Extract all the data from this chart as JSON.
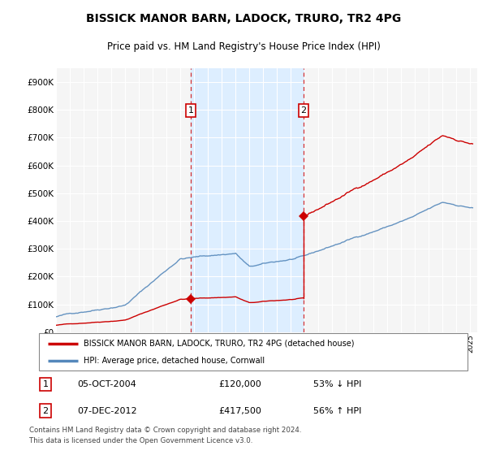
{
  "title": "BISSICK MANOR BARN, LADOCK, TRURO, TR2 4PG",
  "subtitle": "Price paid vs. HM Land Registry's House Price Index (HPI)",
  "sale1_date": "05-OCT-2004",
  "sale1_price": 120000,
  "sale1_label": "53% ↓ HPI",
  "sale2_date": "07-DEC-2012",
  "sale2_price": 417500,
  "sale2_label": "56% ↑ HPI",
  "legend_line1": "BISSICK MANOR BARN, LADOCK, TRURO, TR2 4PG (detached house)",
  "legend_line2": "HPI: Average price, detached house, Cornwall",
  "footer": "Contains HM Land Registry data © Crown copyright and database right 2024.\nThis data is licensed under the Open Government Licence v3.0.",
  "sale_line_color": "#cc0000",
  "hpi_line_color": "#5588bb",
  "sale_marker_color": "#cc0000",
  "background_color": "#ffffff",
  "plot_bg_color": "#f5f5f5",
  "highlight_color": "#ddeeff",
  "sale1_x_year": 2004.76,
  "sale2_x_year": 2012.93,
  "ylim": [
    0,
    950000
  ],
  "xlim_start": 1995,
  "xlim_end": 2025.5
}
